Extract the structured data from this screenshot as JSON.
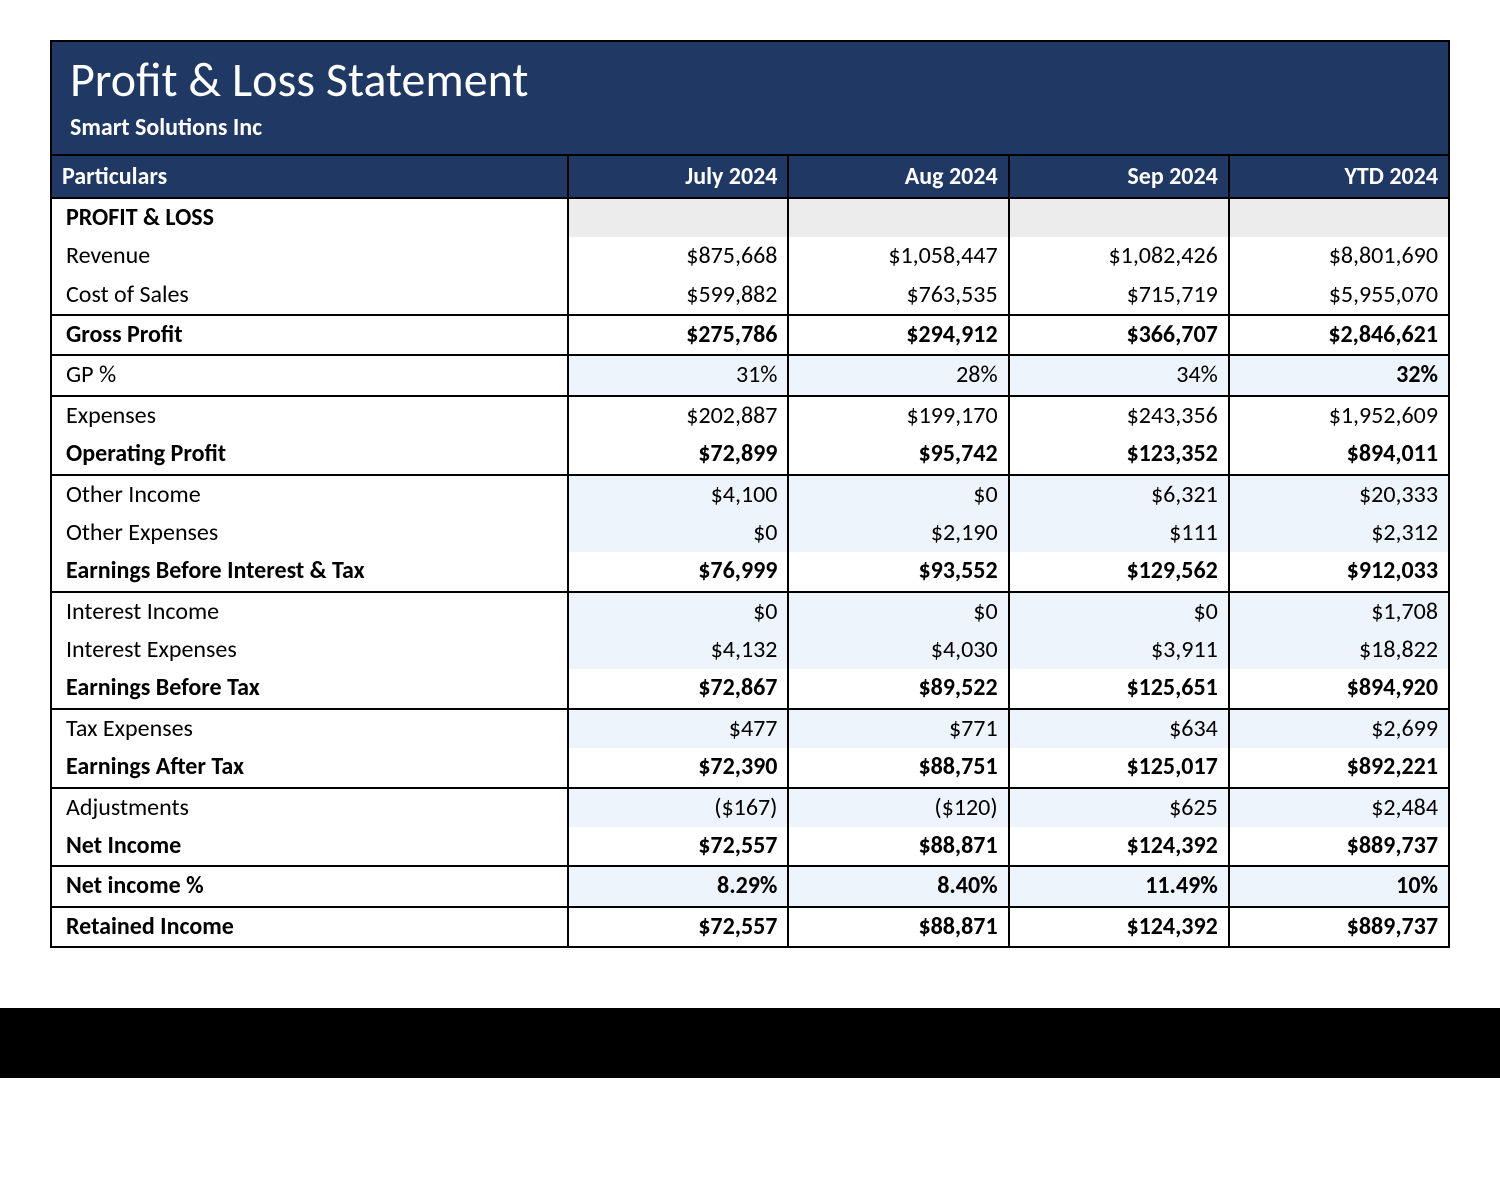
{
  "report": {
    "title": "Profit & Loss Statement",
    "company": "Smart Solutions Inc",
    "colors": {
      "header_bg": "#1f3864",
      "header_text": "#ffffff",
      "row_tint": "#eef4fb",
      "section_blank_bg": "#ececec",
      "border": "#000000",
      "text": "#000000"
    },
    "fonts": {
      "family": "Calibri",
      "title_size_pt": 36,
      "subtitle_size_pt": 18,
      "body_size_pt": 18
    },
    "columns": [
      {
        "key": "label",
        "header": "Particulars",
        "align": "left"
      },
      {
        "key": "jul",
        "header": "July 2024",
        "align": "right"
      },
      {
        "key": "aug",
        "header": "Aug 2024",
        "align": "right"
      },
      {
        "key": "sep",
        "header": "Sep 2024",
        "align": "right"
      },
      {
        "key": "ytd",
        "header": "YTD 2024",
        "align": "right"
      }
    ],
    "section_label": "PROFIT & LOSS",
    "rows": [
      {
        "label": "Revenue",
        "jul": "$875,668",
        "aug": "$1,058,447",
        "sep": "$1,082,426",
        "ytd": "$8,801,690",
        "bold": false,
        "top_line": false,
        "tint": false
      },
      {
        "label": "Cost of Sales",
        "jul": "$599,882",
        "aug": "$763,535",
        "sep": "$715,719",
        "ytd": "$5,955,070",
        "bold": false,
        "top_line": false,
        "tint": false
      },
      {
        "label": "Gross Profit",
        "jul": "$275,786",
        "aug": "$294,912",
        "sep": "$366,707",
        "ytd": "$2,846,621",
        "bold": true,
        "top_line": true,
        "tint": false
      },
      {
        "label": "GP %",
        "jul": "31%",
        "aug": "28%",
        "sep": "34%",
        "ytd": "32%",
        "bold": false,
        "ytd_bold": true,
        "top_line": true,
        "tint": true
      },
      {
        "label": "Expenses",
        "jul": "$202,887",
        "aug": "$199,170",
        "sep": "$243,356",
        "ytd": "$1,952,609",
        "bold": false,
        "top_line": true,
        "tint": false
      },
      {
        "label": "Operating Profit",
        "jul": "$72,899",
        "aug": "$95,742",
        "sep": "$123,352",
        "ytd": "$894,011",
        "bold": true,
        "top_line": false,
        "tint": false
      },
      {
        "label": "Other Income",
        "jul": "$4,100",
        "aug": "$0",
        "sep": "$6,321",
        "ytd": "$20,333",
        "bold": false,
        "top_line": true,
        "tint": true
      },
      {
        "label": "Other Expenses",
        "jul": "$0",
        "aug": "$2,190",
        "sep": "$111",
        "ytd": "$2,312",
        "bold": false,
        "top_line": false,
        "tint": true
      },
      {
        "label": "Earnings Before Interest & Tax",
        "jul": "$76,999",
        "aug": "$93,552",
        "sep": "$129,562",
        "ytd": "$912,033",
        "bold": true,
        "top_line": false,
        "tint": false
      },
      {
        "label": "Interest Income",
        "jul": "$0",
        "aug": "$0",
        "sep": "$0",
        "ytd": "$1,708",
        "bold": false,
        "top_line": true,
        "tint": true
      },
      {
        "label": "Interest Expenses",
        "jul": "$4,132",
        "aug": "$4,030",
        "sep": "$3,911",
        "ytd": "$18,822",
        "bold": false,
        "top_line": false,
        "tint": true
      },
      {
        "label": "Earnings Before Tax",
        "jul": "$72,867",
        "aug": "$89,522",
        "sep": "$125,651",
        "ytd": "$894,920",
        "bold": true,
        "top_line": false,
        "tint": false
      },
      {
        "label": "Tax Expenses",
        "jul": "$477",
        "aug": "$771",
        "sep": "$634",
        "ytd": "$2,699",
        "bold": false,
        "top_line": true,
        "tint": true
      },
      {
        "label": "Earnings After Tax",
        "jul": "$72,390",
        "aug": "$88,751",
        "sep": "$125,017",
        "ytd": "$892,221",
        "bold": true,
        "top_line": false,
        "tint": false
      },
      {
        "label": "Adjustments",
        "jul": "($167)",
        "aug": "($120)",
        "sep": "$625",
        "ytd": "$2,484",
        "bold": false,
        "top_line": true,
        "tint": true
      },
      {
        "label": "Net Income",
        "jul": "$72,557",
        "aug": "$88,871",
        "sep": "$124,392",
        "ytd": "$889,737",
        "bold": true,
        "top_line": false,
        "tint": false
      },
      {
        "label": "Net income %",
        "jul": "8.29%",
        "aug": "8.40%",
        "sep": "11.49%",
        "ytd": "10%",
        "bold": true,
        "top_line": true,
        "tint": true
      },
      {
        "label": "Retained Income",
        "jul": "$72,557",
        "aug": "$88,871",
        "sep": "$124,392",
        "ytd": "$889,737",
        "bold": true,
        "top_line": true,
        "tint": false,
        "last": true
      }
    ]
  }
}
